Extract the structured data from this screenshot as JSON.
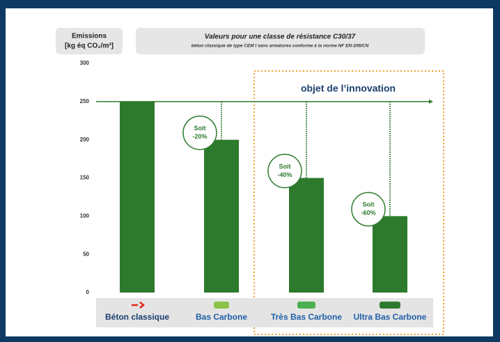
{
  "chart_data": {
    "type": "bar",
    "y_label_line1": "Emissions",
    "y_label_line2": "[kg éq CO₂/m³]",
    "title": "Valeurs pour une classe de résistance C30/37",
    "subtitle": "béton classique de type CEM I sans armatures conforme à la norme NF EN-206/CN",
    "highlight_label": "objet de l’innovation",
    "categories": [
      "Béton classique",
      "Bas Carbone",
      "Très Bas Carbone",
      "Ultra Bas Carbone"
    ],
    "values": [
      250,
      200,
      150,
      100
    ],
    "color": "#2d7a2d",
    "ylim": [
      0,
      300
    ],
    "yticks": [
      0,
      50,
      100,
      150,
      200,
      250,
      300
    ],
    "grid": false,
    "annotations": [
      {
        "line1": "Soit",
        "line2": "-20%"
      },
      {
        "line1": "Soit",
        "line2": "-40%"
      },
      {
        "line1": "Soit",
        "line2": "-60%"
      }
    ]
  }
}
